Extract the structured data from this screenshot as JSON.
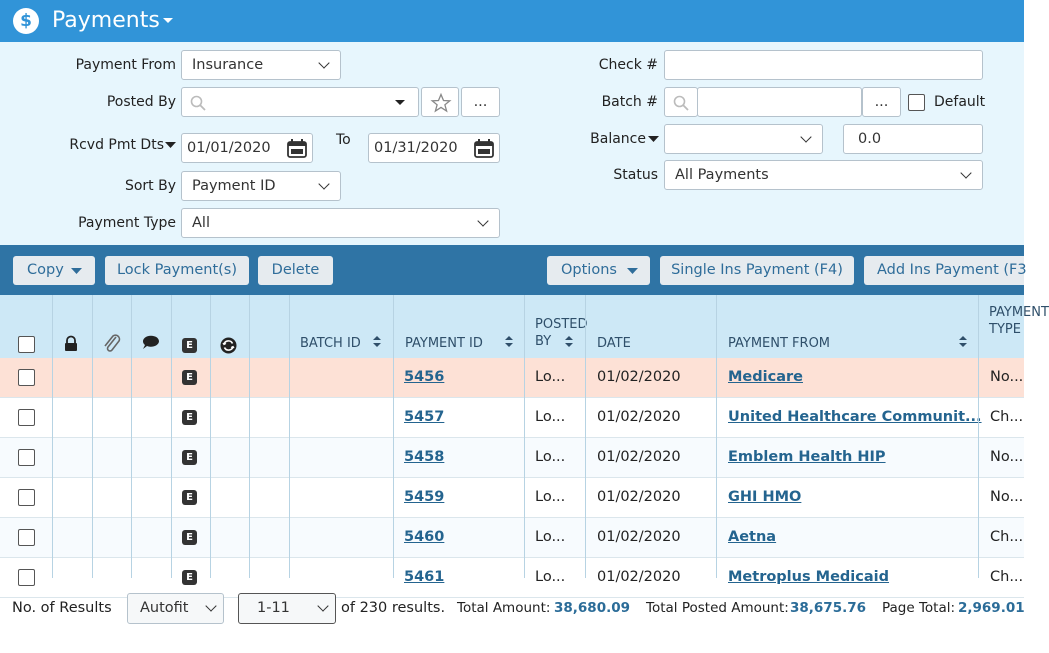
{
  "header": {
    "icon": "$",
    "title": "Payments"
  },
  "filters": {
    "payment_from": {
      "label": "Payment From",
      "value": "Insurance"
    },
    "posted_by": {
      "label": "Posted By",
      "more": "..."
    },
    "rcvd_pmt_dts": {
      "label": "Rcvd Pmt Dts",
      "from": "01/01/2020",
      "to_label": "To",
      "to": "01/31/2020"
    },
    "sort_by": {
      "label": "Sort By",
      "value": "Payment ID"
    },
    "payment_type": {
      "label": "Payment Type",
      "value": "All"
    },
    "check": {
      "label": "Check #"
    },
    "batch": {
      "label": "Batch #",
      "more": "...",
      "default_label": "Default"
    },
    "balance": {
      "label": "Balance",
      "value": "0.0"
    },
    "status": {
      "label": "Status",
      "value": "All Payments"
    }
  },
  "toolbar": {
    "buttons": [
      "Copy",
      "Lock Payment(s)",
      "Delete",
      "Options",
      "Single Ins Payment (F4)",
      "Add Ins Payment (F3"
    ]
  },
  "table": {
    "e_icon": "E",
    "columns": {
      "batch_id": "BATCH ID",
      "payment_id": "PAYMENT ID",
      "posted_by": "POSTED BY",
      "date": "DATE",
      "payment_from": "PAYMENT FROM",
      "payment_type": "PAYMENT TYPE"
    },
    "rows": [
      {
        "payment_id": "5456",
        "posted_by": "Lo...",
        "date": "01/02/2020",
        "payment_from": "Medicare",
        "payment_type": "No..."
      },
      {
        "payment_id": "5457",
        "posted_by": "Lo...",
        "date": "01/02/2020",
        "payment_from": "United Healthcare Communit...",
        "payment_type": "Ch..."
      },
      {
        "payment_id": "5458",
        "posted_by": "Lo...",
        "date": "01/02/2020",
        "payment_from": "Emblem Health HIP",
        "payment_type": "No..."
      },
      {
        "payment_id": "5459",
        "posted_by": "Lo...",
        "date": "01/02/2020",
        "payment_from": "GHI HMO",
        "payment_type": "No..."
      },
      {
        "payment_id": "5460",
        "posted_by": "Lo...",
        "date": "01/02/2020",
        "payment_from": "Aetna",
        "payment_type": "Ch..."
      },
      {
        "payment_id": "5461",
        "posted_by": "Lo...",
        "date": "01/02/2020",
        "payment_from": "Metroplus Medicaid",
        "payment_type": "Ch..."
      }
    ]
  },
  "footer": {
    "results_label": "No. of Results",
    "results_mode": "Autofit",
    "range": "1-11",
    "of_results": "of 230 results.",
    "total_amount_label": "Total Amount:",
    "total_amount": "38,680.09",
    "total_posted_label": "Total Posted Amount:",
    "total_posted": "38,675.76",
    "page_total_label": "Page Total:",
    "page_total": "2,969.01"
  }
}
